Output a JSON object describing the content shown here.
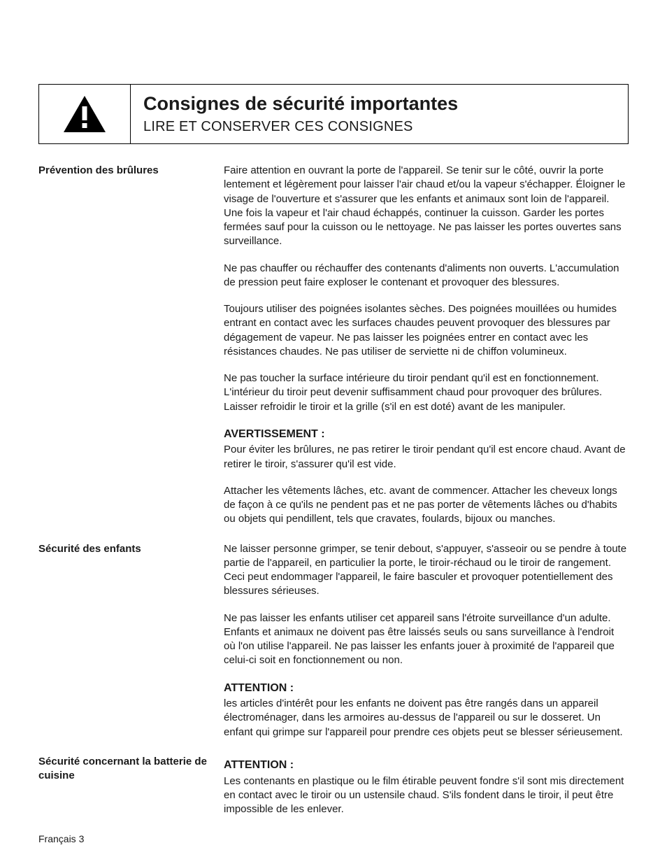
{
  "header": {
    "title": "Consignes de sécurité importantes",
    "subtitle": "LIRE ET CONSERVER CES CONSIGNES",
    "icon": "warning-triangle"
  },
  "sections": [
    {
      "label": "Prévention des brûlures",
      "blocks": [
        {
          "type": "para",
          "text": "Faire attention en ouvrant la porte de l'appareil. Se tenir sur le côté, ouvrir la porte lentement et légèrement pour laisser l'air chaud et/ou la vapeur s'échapper. Éloigner le visage de l'ouverture et s'assurer que les enfants et animaux sont loin de l'appareil. Une fois la vapeur et l'air chaud échappés, continuer la cuisson. Garder les portes fermées sauf pour la cuisson ou le nettoyage. Ne pas laisser les portes ouvertes sans surveillance."
        },
        {
          "type": "para",
          "text": "Ne pas chauffer ou réchauffer des contenants d'aliments non ouverts. L'accumulation de pression peut faire exploser le contenant et provoquer des blessures."
        },
        {
          "type": "para",
          "text": "Toujours utiliser des poignées isolantes sèches. Des poignées mouillées ou humides entrant en contact avec les surfaces chaudes peuvent provoquer des blessures par dégagement de vapeur. Ne pas laisser les poignées entrer en contact avec les résistances chaudes. Ne pas utiliser de serviette ni de chiffon volumineux."
        },
        {
          "type": "para",
          "text": "Ne pas toucher la surface intérieure du tiroir pendant qu'il est en fonctionnement. L'intérieur du tiroir peut devenir suffisamment chaud pour provoquer des brûlures. Laisser refroidir le tiroir et la grille (s'il en est doté) avant de les manipuler."
        },
        {
          "type": "heading",
          "text": "AVERTISSEMENT :"
        },
        {
          "type": "para",
          "text": "Pour éviter les brûlures, ne pas retirer le tiroir pendant qu'il est encore chaud. Avant de retirer le tiroir, s'assurer qu'il est vide."
        },
        {
          "type": "para",
          "text": "Attacher les vêtements lâches, etc. avant de commencer. Attacher les cheveux longs de façon à ce qu'ils ne pendent pas et ne pas porter de vêtements lâches ou d'habits ou objets qui pendillent, tels que cravates, foulards, bijoux ou manches."
        }
      ]
    },
    {
      "label": "Sécurité des enfants",
      "blocks": [
        {
          "type": "para",
          "text": "Ne laisser personne grimper, se tenir debout, s'appuyer, s'asseoir ou se pendre à toute partie de l'appareil, en particulier la porte, le tiroir-réchaud ou le tiroir de rangement. Ceci peut endommager l'appareil, le faire basculer et provoquer potentiellement des blessures sérieuses."
        },
        {
          "type": "para",
          "text": "Ne pas laisser les enfants utiliser cet appareil sans l'étroite surveillance d'un adulte. Enfants et animaux ne doivent pas être laissés seuls ou sans surveillance à l'endroit où l'on utilise l'appareil. Ne pas laisser les enfants jouer à proximité de l'appareil que celui-ci soit en fonctionnement ou non."
        },
        {
          "type": "heading",
          "text": "ATTENTION :"
        },
        {
          "type": "para",
          "text": "les articles d'intérêt pour les enfants ne doivent pas être rangés dans un appareil électroménager, dans les armoires au-dessus de l'appareil ou sur le dosseret. Un enfant qui grimpe sur l'appareil pour prendre ces objets peut se blesser sérieusement."
        }
      ]
    },
    {
      "label": "Sécurité concernant la batterie de cuisine",
      "blocks": [
        {
          "type": "heading",
          "text": "ATTENTION :"
        },
        {
          "type": "para",
          "text": "Les contenants en plastique ou le film étirable peuvent fondre s'il sont mis directement en contact avec le tiroir ou un ustensile chaud. S'ils fondent dans le tiroir, il peut être impossible de les enlever."
        }
      ]
    }
  ],
  "footer": "Français 3"
}
